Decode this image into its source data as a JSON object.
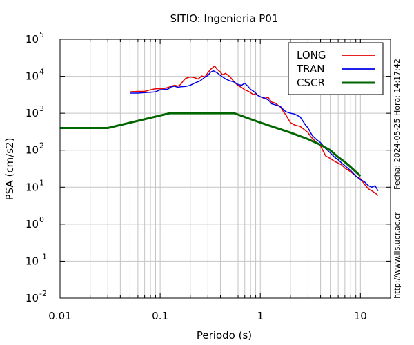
{
  "chart_data": {
    "type": "line",
    "title": "SITIO: Ingenieria P01",
    "xlabel": "Periodo (s)",
    "ylabel": "PSA (cm/s2)",
    "xscale": "log",
    "yscale": "log",
    "xlim": [
      0.01,
      20
    ],
    "ylim": [
      0.01,
      100000
    ],
    "grid": true,
    "legend_position": "top-right",
    "x_ticks": [
      {
        "value": 0.01,
        "label": "0.01"
      },
      {
        "value": 0.1,
        "label": "0.1"
      },
      {
        "value": 1,
        "label": "1"
      },
      {
        "value": 10,
        "label": "10"
      }
    ],
    "y_ticks": [
      {
        "value": 100000,
        "base": "10",
        "exp": "5"
      },
      {
        "value": 10000,
        "base": "10",
        "exp": "4"
      },
      {
        "value": 1000,
        "base": "10",
        "exp": "3"
      },
      {
        "value": 100,
        "base": "10",
        "exp": "2"
      },
      {
        "value": 10,
        "base": "10",
        "exp": "1"
      },
      {
        "value": 1,
        "base": "10",
        "exp": "0"
      },
      {
        "value": 0.1,
        "base": "10",
        "exp": "-1"
      },
      {
        "value": 0.01,
        "base": "10",
        "exp": "-2"
      }
    ],
    "side_texts": {
      "date": "Fecha: 2024-05-25  Hora: 14:17:42",
      "url": "http://www.lis.ucr.ac.cr"
    },
    "series": [
      {
        "name": "LONG",
        "color": "#e60000",
        "width": 1.5,
        "points": [
          [
            0.05,
            3800
          ],
          [
            0.06,
            3900
          ],
          [
            0.07,
            3900
          ],
          [
            0.08,
            4300
          ],
          [
            0.09,
            4600
          ],
          [
            0.1,
            4600
          ],
          [
            0.11,
            4700
          ],
          [
            0.12,
            5000
          ],
          [
            0.13,
            5400
          ],
          [
            0.14,
            5700
          ],
          [
            0.15,
            5400
          ],
          [
            0.16,
            6000
          ],
          [
            0.17,
            7500
          ],
          [
            0.18,
            8800
          ],
          [
            0.2,
            9600
          ],
          [
            0.22,
            9200
          ],
          [
            0.24,
            8400
          ],
          [
            0.26,
            10200
          ],
          [
            0.28,
            9600
          ],
          [
            0.3,
            12500
          ],
          [
            0.32,
            15500
          ],
          [
            0.35,
            19000
          ],
          [
            0.37,
            15500
          ],
          [
            0.4,
            13000
          ],
          [
            0.42,
            11000
          ],
          [
            0.45,
            12000
          ],
          [
            0.5,
            9600
          ],
          [
            0.55,
            7000
          ],
          [
            0.6,
            5600
          ],
          [
            0.65,
            5000
          ],
          [
            0.7,
            4300
          ],
          [
            0.75,
            4000
          ],
          [
            0.8,
            3600
          ],
          [
            0.85,
            3200
          ],
          [
            0.9,
            3400
          ],
          [
            1.0,
            2800
          ],
          [
            1.1,
            2500
          ],
          [
            1.2,
            2700
          ],
          [
            1.3,
            2000
          ],
          [
            1.4,
            1900
          ],
          [
            1.5,
            1650
          ],
          [
            1.6,
            1450
          ],
          [
            1.7,
            1100
          ],
          [
            1.8,
            900
          ],
          [
            2.0,
            560
          ],
          [
            2.2,
            480
          ],
          [
            2.5,
            440
          ],
          [
            2.8,
            350
          ],
          [
            3.0,
            300
          ],
          [
            3.2,
            230
          ],
          [
            3.5,
            180
          ],
          [
            4.0,
            130
          ],
          [
            4.5,
            70
          ],
          [
            5.0,
            60
          ],
          [
            5.5,
            50
          ],
          [
            6.0,
            45
          ],
          [
            6.5,
            40
          ],
          [
            7.0,
            33
          ],
          [
            8.0,
            26
          ],
          [
            9.0,
            20
          ],
          [
            10.0,
            17
          ],
          [
            11.0,
            12
          ],
          [
            12.0,
            9
          ],
          [
            13.0,
            8
          ],
          [
            14.0,
            7
          ],
          [
            15.0,
            6
          ]
        ]
      },
      {
        "name": "TRAN",
        "color": "#0000e6",
        "width": 1.5,
        "points": [
          [
            0.05,
            3500
          ],
          [
            0.06,
            3500
          ],
          [
            0.07,
            3600
          ],
          [
            0.08,
            3700
          ],
          [
            0.09,
            3800
          ],
          [
            0.1,
            4300
          ],
          [
            0.11,
            4400
          ],
          [
            0.12,
            4500
          ],
          [
            0.13,
            5200
          ],
          [
            0.14,
            5400
          ],
          [
            0.15,
            5000
          ],
          [
            0.16,
            5200
          ],
          [
            0.18,
            5300
          ],
          [
            0.2,
            5700
          ],
          [
            0.22,
            6500
          ],
          [
            0.25,
            7500
          ],
          [
            0.28,
            9500
          ],
          [
            0.3,
            10500
          ],
          [
            0.32,
            13000
          ],
          [
            0.34,
            14000
          ],
          [
            0.37,
            12500
          ],
          [
            0.4,
            10500
          ],
          [
            0.45,
            8500
          ],
          [
            0.5,
            7500
          ],
          [
            0.55,
            7000
          ],
          [
            0.6,
            6000
          ],
          [
            0.65,
            5700
          ],
          [
            0.7,
            6500
          ],
          [
            0.75,
            5400
          ],
          [
            0.8,
            4400
          ],
          [
            0.85,
            4000
          ],
          [
            0.9,
            3500
          ],
          [
            0.95,
            3000
          ],
          [
            1.0,
            2800
          ],
          [
            1.1,
            2600
          ],
          [
            1.2,
            2300
          ],
          [
            1.3,
            1800
          ],
          [
            1.4,
            1700
          ],
          [
            1.5,
            1600
          ],
          [
            1.6,
            1500
          ],
          [
            1.7,
            1250
          ],
          [
            1.8,
            1100
          ],
          [
            2.0,
            1000
          ],
          [
            2.2,
            950
          ],
          [
            2.5,
            800
          ],
          [
            2.8,
            500
          ],
          [
            3.0,
            400
          ],
          [
            3.3,
            250
          ],
          [
            3.6,
            200
          ],
          [
            4.0,
            160
          ],
          [
            4.5,
            110
          ],
          [
            5.0,
            85
          ],
          [
            5.5,
            65
          ],
          [
            6.0,
            55
          ],
          [
            6.5,
            45
          ],
          [
            7.0,
            38
          ],
          [
            8.0,
            28
          ],
          [
            9.0,
            20
          ],
          [
            10.0,
            16
          ],
          [
            11.0,
            14
          ],
          [
            12.0,
            11
          ],
          [
            13.0,
            10
          ],
          [
            14.0,
            11
          ],
          [
            15.0,
            8
          ]
        ]
      },
      {
        "name": "CSCR",
        "color": "#006600",
        "width": 3,
        "points": [
          [
            0.01,
            400
          ],
          [
            0.03,
            400
          ],
          [
            0.125,
            1000
          ],
          [
            0.55,
            1000
          ],
          [
            1.0,
            560
          ],
          [
            2.0,
            300
          ],
          [
            3.0,
            200
          ],
          [
            4.0,
            140
          ],
          [
            5.0,
            100
          ],
          [
            6.0,
            65
          ],
          [
            7.0,
            48
          ],
          [
            8.0,
            35
          ],
          [
            10.0,
            20
          ]
        ]
      }
    ]
  }
}
